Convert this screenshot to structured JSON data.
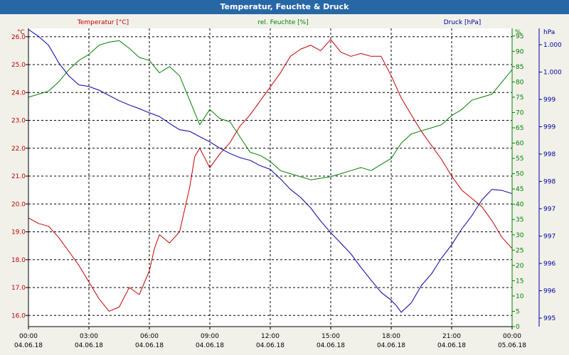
{
  "window": {
    "title": "Temperatur, Feuchte & Druck"
  },
  "colors": {
    "temperature": "#c00000",
    "humidity": "#008000",
    "pressure": "#0000a0",
    "axis": "#000000",
    "grid": "#000000"
  },
  "chart_data": {
    "type": "line",
    "title": "Temperatur, Feuchte & Druck",
    "grid": true,
    "x_ticks": [
      {
        "time": "00:00",
        "date": "04.06.18"
      },
      {
        "time": "03:00",
        "date": "04.06.18"
      },
      {
        "time": "06:00",
        "date": "04.06.18"
      },
      {
        "time": "09:00",
        "date": "04.06.18"
      },
      {
        "time": "12:00",
        "date": "04.06.18"
      },
      {
        "time": "15:00",
        "date": "04.06.18"
      },
      {
        "time": "18:00",
        "date": "04.06.18"
      },
      {
        "time": "21:00",
        "date": "04.06.18"
      },
      {
        "time": "00:00",
        "date": "05.06.18"
      }
    ],
    "x_range_hours": [
      0,
      24
    ],
    "axes": {
      "temperature": {
        "label": "Temperatur [°C]",
        "unit": "°C",
        "range": [
          15.6,
          26.3
        ],
        "ticks": [
          "16.0",
          "17.0",
          "18.0",
          "19.0",
          "20.0",
          "21.0",
          "22.0",
          "23.0",
          "24.0",
          "25.0",
          "26.0"
        ]
      },
      "humidity": {
        "label": "rel. Feuchte [%]",
        "unit": "%",
        "range": [
          0,
          97.5
        ],
        "ticks": [
          "0",
          "5",
          "10",
          "15",
          "20",
          "25",
          "30",
          "35",
          "40",
          "45",
          "50",
          "55",
          "60",
          "65",
          "70",
          "75",
          "80",
          "85",
          "90",
          "95"
        ]
      },
      "pressure": {
        "label": "Druck [hPa]",
        "unit": "hPa",
        "range": [
          995.0,
          1000.65
        ],
        "ticks": [
          "995",
          "996",
          "996",
          "997",
          "997",
          "998",
          "998",
          "999",
          "999",
          "1.000",
          "1.000"
        ]
      }
    },
    "series": [
      {
        "name": "Temperatur",
        "axis": "temperature",
        "x": [
          0,
          0.5,
          1,
          1.5,
          2,
          2.5,
          3,
          3.5,
          4,
          4.5,
          5,
          5.5,
          6,
          6.25,
          6.5,
          7,
          7.5,
          8,
          8.25,
          8.5,
          9,
          9.5,
          10,
          10.5,
          11,
          11.5,
          12,
          12.5,
          13,
          13.5,
          14,
          14.5,
          15,
          15.5,
          16,
          16.5,
          17,
          17.5,
          18,
          18.5,
          19,
          19.5,
          20,
          20.5,
          21,
          21.5,
          22,
          22.5,
          23,
          23.5,
          24
        ],
        "y": [
          19.5,
          19.3,
          19.2,
          18.8,
          18.3,
          17.8,
          17.2,
          16.6,
          16.15,
          16.3,
          17.0,
          16.75,
          17.6,
          18.4,
          18.9,
          18.6,
          19.0,
          20.6,
          21.7,
          22.0,
          21.3,
          21.8,
          22.2,
          22.8,
          23.2,
          23.7,
          24.2,
          24.7,
          25.3,
          25.55,
          25.7,
          25.5,
          25.9,
          25.45,
          25.3,
          25.4,
          25.3,
          25.3,
          24.6,
          23.8,
          23.2,
          22.6,
          22.1,
          21.6,
          21.0,
          20.5,
          20.2,
          19.9,
          19.4,
          18.8,
          18.4
        ]
      },
      {
        "name": "rel. Feuchte",
        "axis": "humidity",
        "x": [
          0,
          0.5,
          1,
          1.5,
          2,
          2.5,
          3,
          3.5,
          4,
          4.5,
          5,
          5.5,
          6,
          6.5,
          7,
          7.5,
          8,
          8.5,
          9,
          9.5,
          10,
          10.5,
          11,
          11.5,
          12,
          12.5,
          13,
          13.5,
          14,
          14.5,
          15,
          15.5,
          16,
          16.5,
          17,
          17.5,
          18,
          18.5,
          19,
          19.5,
          20,
          20.5,
          21,
          21.5,
          22,
          22.5,
          23,
          23.5,
          24
        ],
        "y": [
          75,
          76,
          77,
          80,
          84,
          87,
          89,
          92,
          93,
          93.5,
          91,
          88,
          87,
          83,
          85,
          82,
          74,
          66,
          71,
          68,
          67,
          62,
          57,
          56,
          54,
          51,
          50,
          49,
          48,
          48.5,
          49,
          50,
          51,
          52,
          51,
          53,
          55,
          60,
          63,
          64,
          65,
          66,
          69,
          71,
          74,
          75,
          76,
          80,
          84
        ]
      },
      {
        "name": "Druck",
        "axis": "pressure",
        "x": [
          0,
          0.5,
          1,
          1.5,
          2,
          2.5,
          3,
          3.5,
          4,
          4.5,
          5,
          5.5,
          6,
          6.5,
          7,
          7.5,
          8,
          8.5,
          9,
          9.5,
          10,
          10.5,
          11,
          11.5,
          12,
          12.5,
          13,
          13.5,
          14,
          14.5,
          15,
          15.5,
          16,
          16.5,
          17,
          17.5,
          18,
          18.25,
          18.5,
          19,
          19.5,
          20,
          20.5,
          21,
          21.5,
          22,
          22.5,
          23,
          23.5,
          24
        ],
        "y": [
          1000.63,
          1000.5,
          1000.33,
          1000.0,
          999.75,
          999.58,
          999.55,
          999.48,
          999.38,
          999.28,
          999.2,
          999.13,
          999.05,
          998.98,
          998.85,
          998.73,
          998.7,
          998.6,
          998.5,
          998.38,
          998.28,
          998.2,
          998.15,
          998.05,
          997.98,
          997.8,
          997.6,
          997.45,
          997.25,
          997.0,
          996.78,
          996.58,
          996.38,
          996.12,
          995.88,
          995.65,
          995.5,
          995.4,
          995.27,
          995.45,
          995.78,
          996.0,
          996.3,
          996.55,
          996.85,
          997.1,
          997.4,
          997.6,
          997.58,
          997.52
        ]
      }
    ]
  }
}
